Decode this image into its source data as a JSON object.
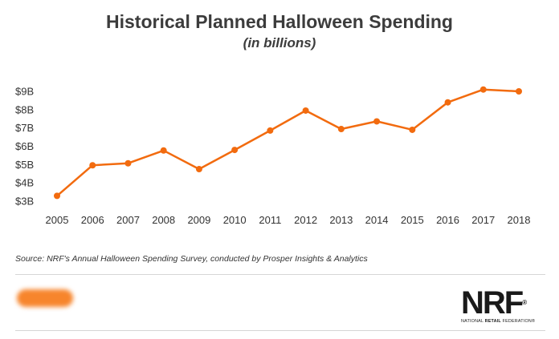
{
  "chart_data": {
    "type": "line",
    "title": "Historical Planned Halloween Spending",
    "subtitle": "(in billions)",
    "x": [
      "2005",
      "2006",
      "2007",
      "2008",
      "2009",
      "2010",
      "2011",
      "2012",
      "2013",
      "2014",
      "2015",
      "2016",
      "2017",
      "2018"
    ],
    "series": [
      {
        "values": [
          3.29,
          4.96,
          5.07,
          5.77,
          4.75,
          5.8,
          6.86,
          7.95,
          6.94,
          7.36,
          6.9,
          8.4,
          9.1,
          9.0
        ]
      }
    ],
    "ylim": [
      3,
      9
    ],
    "yticks": [
      "$3B",
      "$4B",
      "$5B",
      "$6B",
      "$7B",
      "$8B",
      "$9B"
    ],
    "xlabel": "",
    "ylabel": "",
    "grid": false,
    "color": "#f26b0f"
  },
  "source": "Source: NRF's Annual Halloween Spending Survey, conducted by Prosper Insights & Analytics",
  "logo": {
    "mark": "NRF",
    "reg": "®",
    "sub_left": "NATIONAL ",
    "sub_bold": "RETAIL",
    "sub_right": " FEDERATION®"
  }
}
